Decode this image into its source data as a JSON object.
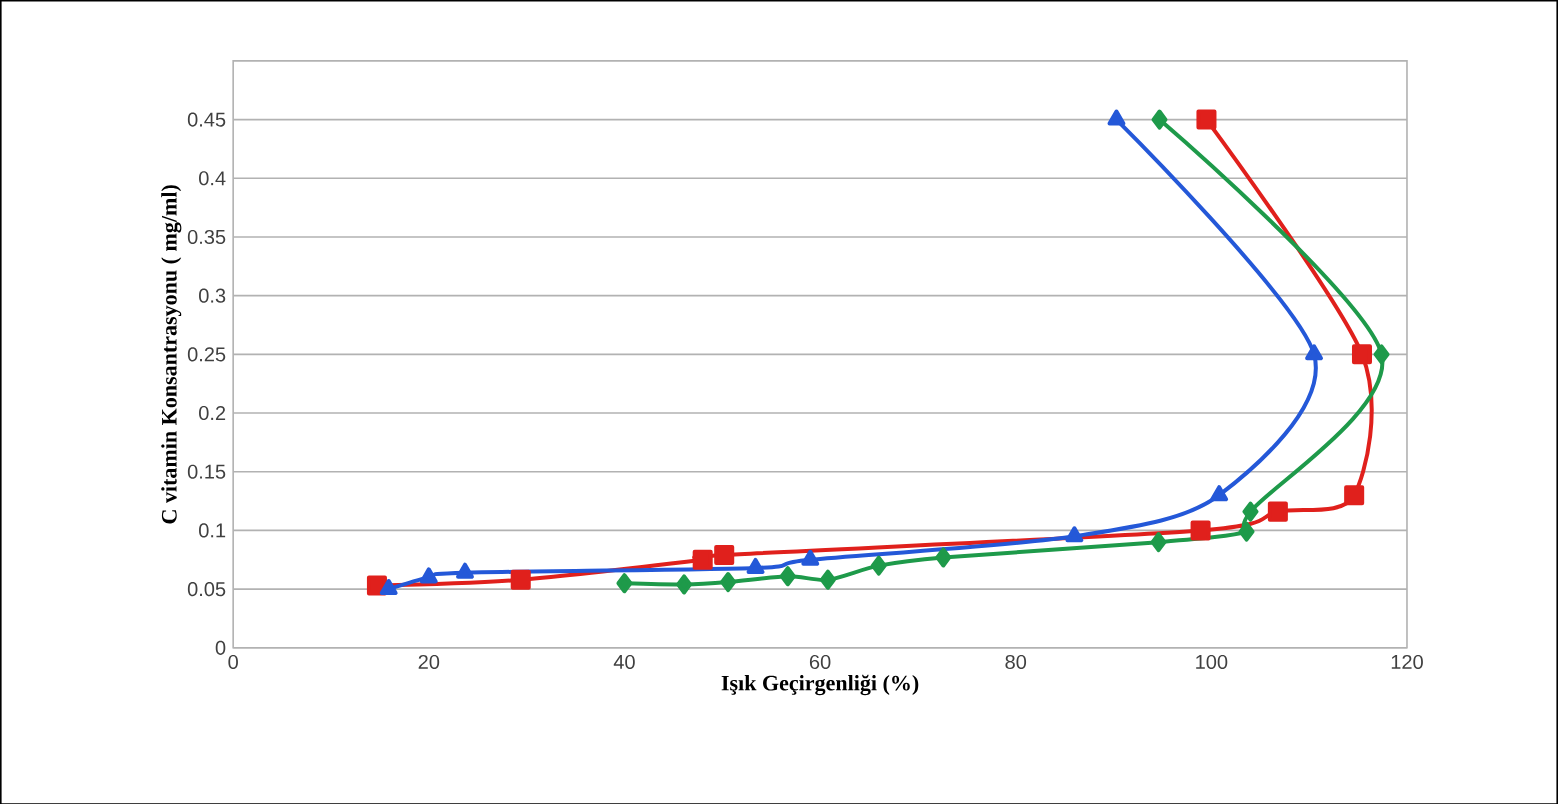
{
  "chart_data": {
    "type": "line",
    "xlabel": "Işık Geçirgenliği (%)",
    "ylabel": "C vitamin Konsantrasyonu ( mg/ml)",
    "xlim": [
      0,
      120
    ],
    "xticks": [
      0,
      20,
      40,
      60,
      80,
      100,
      120
    ],
    "ylim": [
      0,
      0.5
    ],
    "yticks": [
      0,
      0.05,
      0.1,
      0.15,
      0.2,
      0.25,
      0.3,
      0.35,
      0.4,
      0.45
    ],
    "grid": "y",
    "series": [
      {
        "color": "#e0201c",
        "marker": "square",
        "x": [
          99.5,
          115.4,
          114.6,
          106.8,
          98.9,
          50.2,
          48,
          29.4,
          14.7
        ],
        "values": [
          0.45,
          0.25,
          0.13,
          0.116,
          0.1,
          0.079,
          0.075,
          0.058,
          0.053
        ]
      },
      {
        "color": "#1e9a4a",
        "marker": "diamond",
        "x": [
          94.7,
          117.4,
          104,
          103.6,
          94.6,
          72.6,
          66,
          60.8,
          56.7,
          50.6,
          46.1,
          40
        ],
        "values": [
          0.45,
          0.25,
          0.116,
          0.099,
          0.09,
          0.077,
          0.07,
          0.058,
          0.061,
          0.056,
          0.054,
          0.055
        ]
      },
      {
        "color": "#2458d8",
        "marker": "triangle",
        "x": [
          90.3,
          110.5,
          100.8,
          86,
          59,
          53.4,
          23.7,
          20,
          15.9
        ],
        "values": [
          0.45,
          0.25,
          0.13,
          0.095,
          0.075,
          0.068,
          0.064,
          0.06,
          0.05
        ]
      }
    ]
  }
}
